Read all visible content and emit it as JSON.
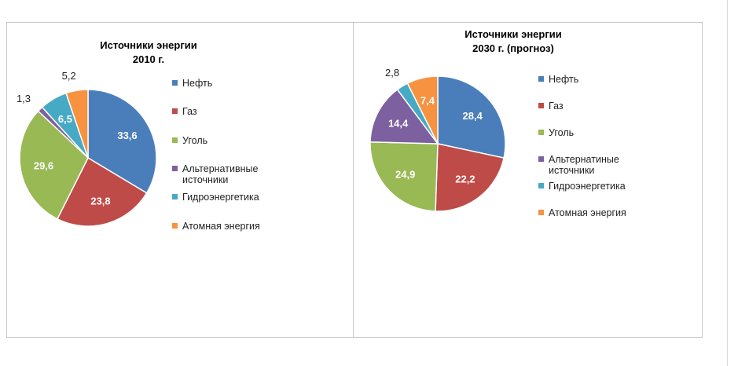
{
  "chart_data": [
    {
      "type": "pie",
      "title": [
        "Источники энергии",
        "2010 г."
      ],
      "slices": [
        {
          "label": "Нефть",
          "value": 33.6,
          "display": "33,6",
          "color": "#4a7ebb"
        },
        {
          "label": "Газ",
          "value": 23.8,
          "display": "23,8",
          "color": "#be4b48"
        },
        {
          "label": "Уголь",
          "value": 29.6,
          "display": "29,6",
          "color": "#98b954"
        },
        {
          "label": "Альтернативные источники",
          "value": 1.3,
          "display": "1,3",
          "color": "#7d60a0"
        },
        {
          "label": "Гидроэнергетика",
          "value": 6.5,
          "display": "6,5",
          "color": "#46aac5"
        },
        {
          "label": "Атомная энергия",
          "value": 5.2,
          "display": "5,2",
          "color": "#f69240"
        }
      ],
      "legend": [
        "Нефть",
        "Газ",
        "Уголь",
        "Альтернативные источники",
        "Гидроэнергетика",
        "Атомная энергия"
      ],
      "legend_position": "right"
    },
    {
      "type": "pie",
      "title": [
        "Источники энергии",
        "2030 г. (прогноз)"
      ],
      "slices": [
        {
          "label": "Нефть",
          "value": 28.4,
          "display": "28,4",
          "color": "#4a7ebb"
        },
        {
          "label": "Газ",
          "value": 22.2,
          "display": "22,2",
          "color": "#be4b48"
        },
        {
          "label": "Уголь",
          "value": 24.9,
          "display": "24,9",
          "color": "#98b954"
        },
        {
          "label": "Альтернатиные источники",
          "value": 14.4,
          "display": "14,4",
          "color": "#7d60a0"
        },
        {
          "label": "Гидроэнергетика",
          "value": 2.8,
          "display": "2,8",
          "color": "#46aac5"
        },
        {
          "label": "Атомная энергия",
          "value": 7.4,
          "display": "7,4",
          "color": "#f69240"
        }
      ],
      "legend": [
        "Нефть",
        "Газ",
        "Уголь",
        "Альтернатиные источники",
        "Гидроэнергетика",
        "Атомная энергия"
      ],
      "legend_position": "right"
    }
  ]
}
